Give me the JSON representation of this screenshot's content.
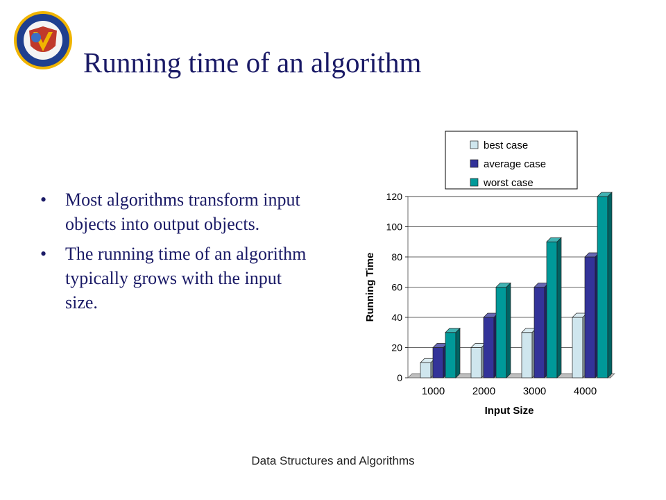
{
  "slide": {
    "title": "Running time of an algorithm",
    "bullets": [
      "Most algorithms transform input objects into output objects.",
      "The running time of an algorithm typically grows with the input size."
    ],
    "footer": "Data Structures and Algorithms",
    "bullet_glyph": "•"
  },
  "logo": {
    "colors": {
      "ring": "#1f3f8f",
      "gold": "#f0b400",
      "red": "#c0392b",
      "blue": "#3a6fc4"
    }
  },
  "chart_data": {
    "type": "bar",
    "categories": [
      "1000",
      "2000",
      "3000",
      "4000"
    ],
    "series": [
      {
        "name": "best case",
        "values": [
          10,
          20,
          30,
          40
        ],
        "color": "#cfe6ee"
      },
      {
        "name": "average case",
        "values": [
          20,
          40,
          60,
          80
        ],
        "color": "#333399"
      },
      {
        "name": "worst case",
        "values": [
          30,
          60,
          90,
          120
        ],
        "color": "#009999"
      }
    ],
    "xlabel": "Input Size",
    "ylabel": "Running Time",
    "ylim": [
      0,
      120
    ],
    "yticks": [
      "0",
      "20",
      "40",
      "60",
      "80",
      "100",
      "120"
    ],
    "grid": true,
    "legend": "top",
    "style": "3d-bar"
  }
}
